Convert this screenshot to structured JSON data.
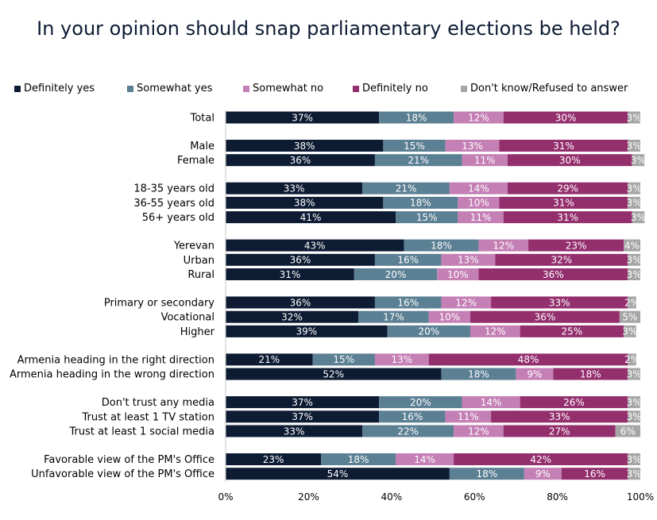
{
  "chart_data": {
    "type": "bar",
    "orientation": "horizontal",
    "stacked": true,
    "title": "In your opinion should snap parliamentary elections be held?",
    "xlabel": "",
    "ylabel": "",
    "xlim": [
      0,
      100
    ],
    "x_ticks": [
      "0%",
      "20%",
      "40%",
      "60%",
      "80%",
      "100%"
    ],
    "grid": false,
    "legend_position": "top",
    "categories": [
      "Total",
      "Male",
      "Female",
      "18-35 years old",
      "36-55 years old",
      "56+ years old",
      "Yerevan",
      "Urban",
      "Rural",
      "Primary or secondary",
      "Vocational",
      "Higher",
      "Armenia heading in the right direction",
      "Armenia heading in the wrong direction",
      "Don't trust any media",
      "Trust at least 1 TV station",
      "Trust at least 1 social media",
      "Favorable view of the PM's Office",
      "Unfavorable view of the PM's Office"
    ],
    "groups": [
      1,
      2,
      3,
      3,
      3,
      2,
      3,
      2
    ],
    "series": [
      {
        "name": "Definitely yes",
        "color": "#0d1b33",
        "values": [
          37,
          38,
          36,
          33,
          38,
          41,
          43,
          36,
          31,
          36,
          32,
          39,
          21,
          52,
          37,
          37,
          33,
          23,
          54
        ]
      },
      {
        "name": "Somewhat yes",
        "color": "#5b7f93",
        "values": [
          18,
          15,
          21,
          21,
          18,
          15,
          18,
          16,
          20,
          16,
          17,
          20,
          15,
          18,
          20,
          16,
          22,
          18,
          18
        ]
      },
      {
        "name": "Somewhat no",
        "color": "#c47fb5",
        "values": [
          12,
          13,
          11,
          14,
          10,
          11,
          12,
          13,
          10,
          12,
          10,
          12,
          13,
          9,
          14,
          11,
          12,
          14,
          9
        ]
      },
      {
        "name": "Definitely no",
        "color": "#942f6e",
        "values": [
          30,
          31,
          30,
          29,
          31,
          31,
          23,
          32,
          36,
          33,
          36,
          25,
          48,
          18,
          26,
          33,
          27,
          42,
          16
        ]
      },
      {
        "name": "Don't know/Refused to answer",
        "color": "#a6a6a6",
        "values": [
          3,
          3,
          3,
          3,
          3,
          3,
          4,
          3,
          3,
          2,
          5,
          3,
          2,
          3,
          3,
          3,
          6,
          3,
          3
        ]
      }
    ]
  }
}
